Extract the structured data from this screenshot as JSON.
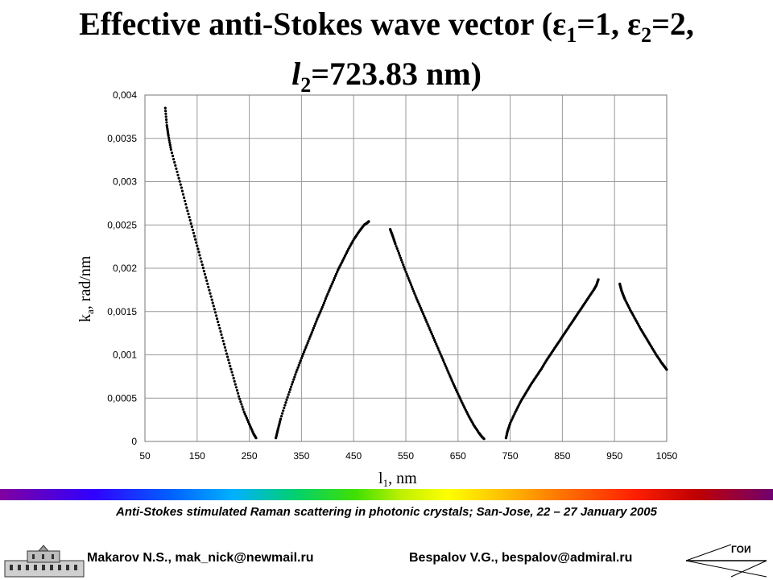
{
  "header": {
    "title_pre": "Effective anti-Stokes wave vector (",
    "eps": "ε",
    "eps1_sub": "1",
    "eps1_val": "=1, ",
    "eps2_sub": "2",
    "eps2_val": "=2,",
    "l_sym": "l",
    "l_sub": "2",
    "l_val": "=723.83 nm)"
  },
  "footer": {
    "conference": "Anti-Stokes stimulated Raman scattering in photonic crystals; San-Jose, 22 – 27 January  2005",
    "author1": "Makarov N.S., mak_nick@newmail.ru",
    "author2": "Bespalov V.G., bespalov@admiral.ru",
    "logo_right_text": "ГОИ"
  },
  "chart_data": {
    "type": "scatter",
    "xlabel_main": "l",
    "xlabel_sub": "1",
    "xlabel_unit": ",  nm",
    "ylabel_main": "k",
    "ylabel_sub": "a",
    "ylabel_unit": ",  rad/nm",
    "xlim": [
      50,
      1050
    ],
    "ylim": [
      0,
      0.004
    ],
    "x_ticks": [
      50,
      150,
      250,
      350,
      450,
      550,
      650,
      750,
      850,
      950,
      1050
    ],
    "y_ticks": [
      0,
      0.0005,
      0.001,
      0.0015,
      0.002,
      0.0025,
      0.003,
      0.0035,
      0.004
    ],
    "y_tick_labels": [
      "0",
      "0,0005",
      "0,001",
      "0,0015",
      "0,002",
      "0,0025",
      "0,003",
      "0,0035",
      "0,004"
    ],
    "grid": true,
    "marker_color": "#000000",
    "series": [
      {
        "x": [
          89,
          92,
          95,
          100,
          110,
          120,
          130,
          140,
          150,
          160,
          170,
          180,
          190,
          200,
          210,
          220,
          230,
          240,
          250,
          258,
          263
        ],
        "y": [
          0.00385,
          0.00365,
          0.00353,
          0.00337,
          0.00315,
          0.00293,
          0.0027,
          0.00248,
          0.00226,
          0.00204,
          0.00182,
          0.0016,
          0.00138,
          0.00116,
          0.00094,
          0.00073,
          0.00052,
          0.00034,
          0.0002,
          9e-05,
          4e-05
        ]
      },
      {
        "x": [
          301,
          305,
          310,
          320,
          330,
          340,
          350,
          360,
          370,
          380,
          390,
          400,
          410,
          420,
          430,
          440,
          450,
          460,
          470,
          475,
          479
        ],
        "y": [
          4e-05,
          0.00014,
          0.00026,
          0.00045,
          0.00063,
          0.0008,
          0.00096,
          0.00111,
          0.00126,
          0.00141,
          0.00155,
          0.0017,
          0.00184,
          0.00198,
          0.0021,
          0.00222,
          0.00233,
          0.00242,
          0.0025,
          0.00252,
          0.00254
        ]
      },
      {
        "x": [
          520,
          525,
          530,
          540,
          550,
          560,
          570,
          580,
          590,
          600,
          610,
          620,
          630,
          640,
          650,
          660,
          670,
          680,
          690,
          695,
          700
        ],
        "y": [
          0.00245,
          0.00237,
          0.00228,
          0.00212,
          0.00196,
          0.00181,
          0.00166,
          0.00152,
          0.00138,
          0.00124,
          0.0011,
          0.00096,
          0.00082,
          0.00068,
          0.00055,
          0.00042,
          0.0003,
          0.00019,
          0.0001,
          6e-05,
          3e-05
        ]
      },
      {
        "x": [
          742,
          745,
          750,
          760,
          770,
          780,
          790,
          800,
          810,
          820,
          830,
          840,
          850,
          860,
          870,
          880,
          890,
          900,
          910,
          915,
          919
        ],
        "y": [
          4e-05,
          0.00012,
          0.00021,
          0.00034,
          0.00046,
          0.00056,
          0.00066,
          0.00075,
          0.00084,
          0.00094,
          0.00103,
          0.00112,
          0.00121,
          0.0013,
          0.00139,
          0.00148,
          0.00157,
          0.00166,
          0.00175,
          0.0018,
          0.00187
        ]
      },
      {
        "x": [
          960,
          963,
          966,
          970,
          980,
          990,
          1000,
          1010,
          1020,
          1030,
          1040,
          1045,
          1050
        ],
        "y": [
          0.00182,
          0.00175,
          0.0017,
          0.00164,
          0.00152,
          0.00141,
          0.0013,
          0.0012,
          0.0011,
          0.001,
          0.00091,
          0.00087,
          0.00083
        ]
      }
    ]
  }
}
